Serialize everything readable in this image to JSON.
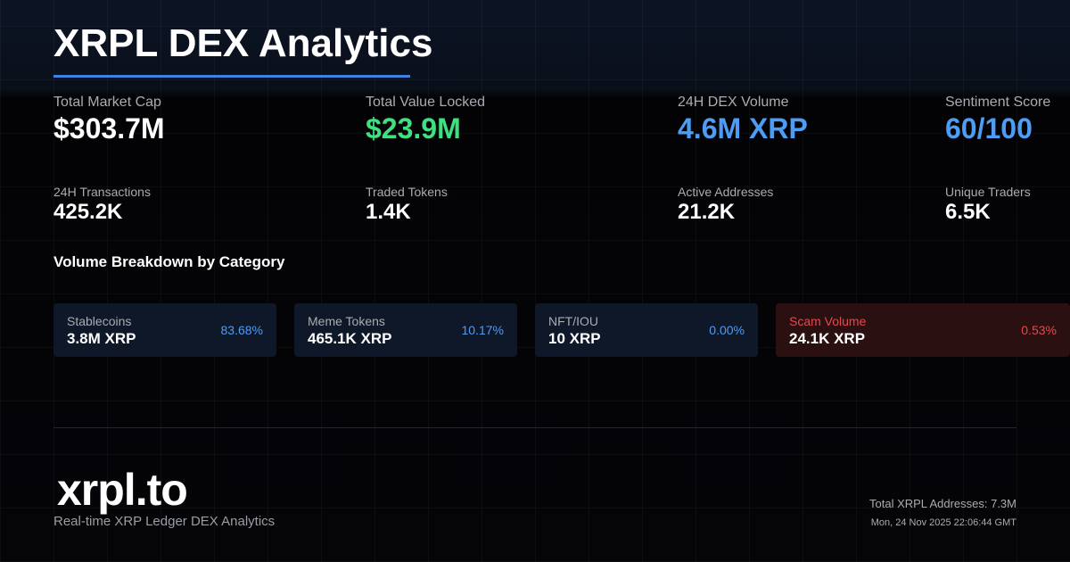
{
  "header": {
    "title": "XRPL DEX Analytics"
  },
  "stats": [
    {
      "label": "Total Market Cap",
      "value": "$303.7M"
    },
    {
      "label": "Total Value Locked",
      "value": "$23.9M"
    },
    {
      "label": "24H DEX Volume",
      "value": "4.6M XRP"
    },
    {
      "label": "Sentiment Score",
      "value": "60/100"
    }
  ],
  "secondary_stats": [
    {
      "label": "24H Transactions",
      "value": "425.2K"
    },
    {
      "label": "Traded Tokens",
      "value": "1.4K"
    },
    {
      "label": "Active Addresses",
      "value": "21.2K"
    },
    {
      "label": "Unique Traders",
      "value": "6.5K"
    }
  ],
  "breakdown": {
    "title": "Volume Breakdown by Category",
    "cards": [
      {
        "label": "Stablecoins",
        "value": "3.8M XRP",
        "share": "83.68%"
      },
      {
        "label": "Meme Tokens",
        "value": "465.1K XRP",
        "share": "10.17%"
      },
      {
        "label": "NFT/IOU",
        "value": "10 XRP",
        "share": "0.00%"
      },
      {
        "label": "Scam Volume",
        "value": "24.1K XRP",
        "share": "0.53%"
      }
    ]
  },
  "footer": {
    "logo": "xrpl.to",
    "tagline": "Real-time XRP Ledger DEX Analytics",
    "addresses": "Total XRPL Addresses: 7.3M",
    "timestamp": "Mon, 24 Nov 2025 22:06:44 GMT"
  }
}
